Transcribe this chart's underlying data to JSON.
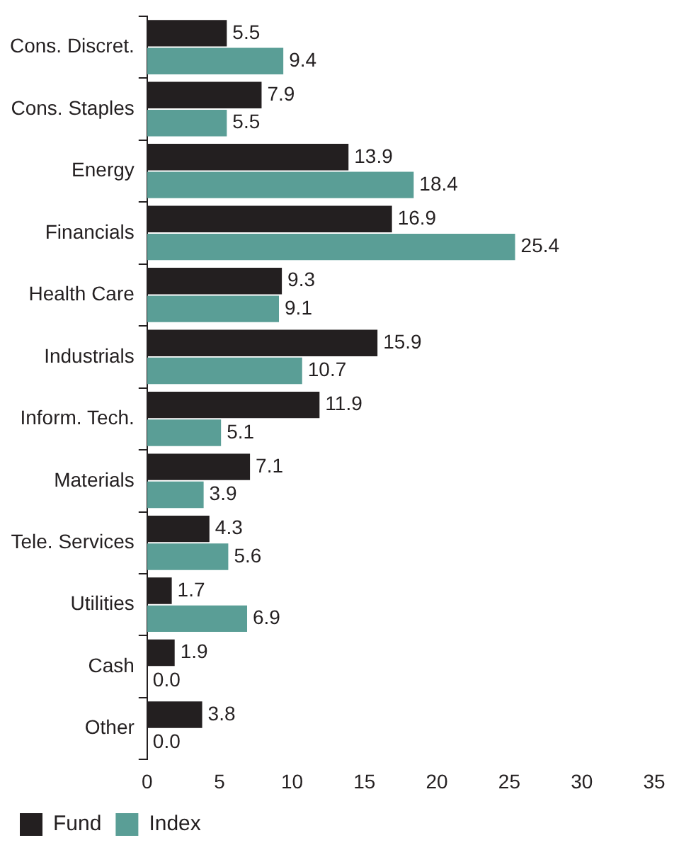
{
  "chart_data": {
    "type": "bar",
    "orientation": "horizontal",
    "categories": [
      "Cons. Discret.",
      "Cons. Staples",
      "Energy",
      "Financials",
      "Health Care",
      "Industrials",
      "Inform. Tech.",
      "Materials",
      "Tele. Services",
      "Utilities",
      "Cash",
      "Other"
    ],
    "series": [
      {
        "name": "Fund",
        "color": "#231f20",
        "values": [
          5.5,
          7.9,
          13.9,
          16.9,
          9.3,
          15.9,
          11.9,
          7.1,
          4.3,
          1.7,
          1.9,
          3.8
        ],
        "value_labels": [
          "5.5",
          "7.9",
          "13.9",
          "16.9",
          "9.3",
          "15.9",
          "11.9",
          "7.1",
          "4.3",
          "1.7",
          "1.9",
          "3.8"
        ]
      },
      {
        "name": "Index",
        "color": "#5a9e96",
        "values": [
          9.4,
          5.5,
          18.4,
          25.4,
          9.1,
          10.7,
          5.1,
          3.9,
          5.6,
          6.9,
          0.0,
          0.0
        ],
        "value_labels": [
          "9.4",
          "5.5",
          "18.4",
          "25.4",
          "9.1",
          "10.7",
          "5.1",
          "3.9",
          "5.6",
          "6.9",
          "0.0",
          "0.0"
        ]
      }
    ],
    "xlim": [
      0,
      35
    ],
    "xticks": [
      0,
      5,
      10,
      15,
      20,
      25,
      30,
      35
    ],
    "grid": false,
    "legend": "bottom"
  }
}
